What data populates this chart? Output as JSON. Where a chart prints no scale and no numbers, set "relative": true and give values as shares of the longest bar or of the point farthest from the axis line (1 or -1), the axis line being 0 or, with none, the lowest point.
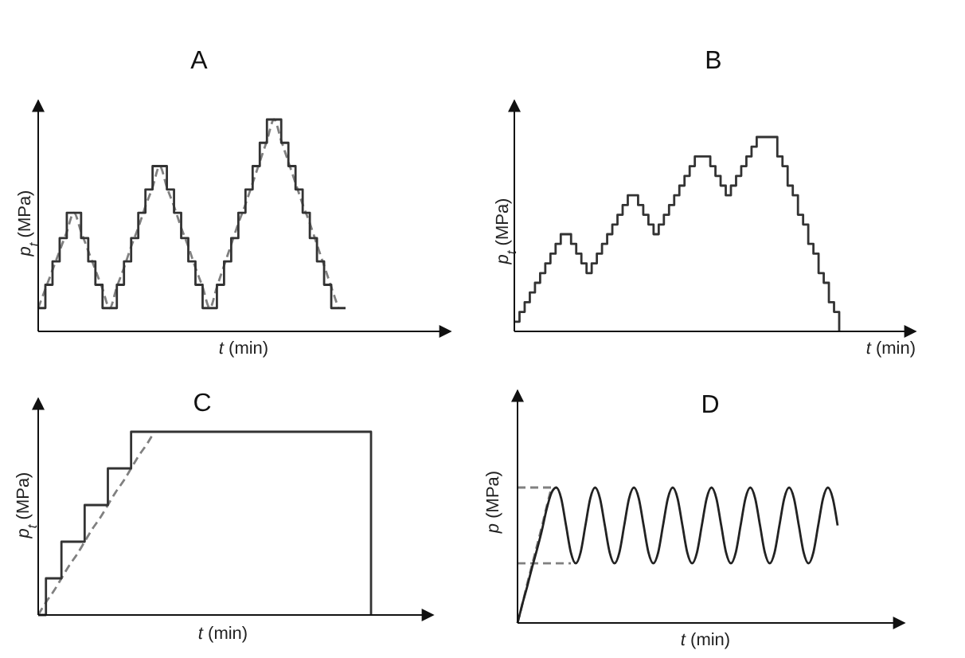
{
  "chart_data": [
    {
      "type": "step",
      "title": "A",
      "xlabel": "t (min)",
      "ylabel": "p$_{t}$ (MPa)",
      "relative": true,
      "categories": [
        null,
        null,
        null,
        null,
        null,
        null,
        null,
        null,
        null,
        null,
        null,
        null,
        null,
        null,
        null,
        null,
        null,
        null,
        null,
        null,
        null,
        null,
        null,
        null,
        null,
        null,
        null,
        null,
        null,
        null,
        null,
        null,
        null,
        null,
        null,
        null,
        null,
        null,
        null,
        null,
        null,
        null,
        null,
        null
      ],
      "series": [
        {
          "type": "line",
          "color": "#808080",
          "line_style": "dashed",
          "values": [
            0.11,
            0.2,
            0.29,
            0.38,
            0.47,
            0.56,
            0.47,
            0.38,
            0.29,
            0.2,
            0.11,
            0.21,
            0.3,
            0.4,
            0.49,
            0.59,
            0.68,
            0.78,
            0.68,
            0.59,
            0.49,
            0.4,
            0.3,
            0.21,
            0.11,
            0.21,
            0.31,
            0.41,
            0.51,
            0.6,
            0.7,
            0.8,
            0.9,
            1,
            0.9,
            0.8,
            0.7,
            0.6,
            0.51,
            0.41,
            0.31,
            0.21,
            0.11,
            null
          ]
        },
        {
          "color": "#333333",
          "line_style": "solid",
          "values": [
            0.11,
            0.22,
            0.33,
            0.44,
            0.56,
            0.56,
            0.44,
            0.33,
            0.22,
            0.11,
            0.11,
            0.22,
            0.33,
            0.44,
            0.56,
            0.67,
            0.78,
            0.78,
            0.67,
            0.56,
            0.44,
            0.33,
            0.22,
            0.11,
            0.11,
            0.22,
            0.33,
            0.44,
            0.56,
            0.67,
            0.78,
            0.89,
            1,
            1,
            0.89,
            0.78,
            0.67,
            0.56,
            0.44,
            0.33,
            0.22,
            0.11,
            0.11,
            0.11
          ]
        }
      ]
    },
    {
      "type": "step",
      "title": "B",
      "xlabel": "t (min)",
      "ylabel": "p$_{t}$ (MPa)",
      "relative": true,
      "categories": [
        null,
        null,
        null,
        null,
        null,
        null,
        null,
        null,
        null,
        null,
        null,
        null,
        null,
        null,
        null,
        null,
        null,
        null,
        null,
        null,
        null,
        null,
        null,
        null,
        null,
        null,
        null,
        null,
        null,
        null,
        null,
        null,
        null,
        null,
        null,
        null,
        null,
        null,
        null,
        null,
        null,
        null,
        null,
        null,
        null,
        null,
        null,
        null,
        null,
        null,
        null,
        null,
        null,
        null,
        null,
        null,
        null,
        null,
        null,
        null,
        null,
        null,
        null,
        null
      ],
      "series": [
        {
          "color": "#333333",
          "line_style": "solid",
          "values": [
            0.05,
            0.1,
            0.15,
            0.2,
            0.25,
            0.3,
            0.35,
            0.4,
            0.45,
            0.5,
            0.5,
            0.45,
            0.4,
            0.35,
            0.3,
            0.35,
            0.4,
            0.45,
            0.5,
            0.55,
            0.6,
            0.65,
            0.7,
            0.7,
            0.65,
            0.6,
            0.55,
            0.5,
            0.55,
            0.6,
            0.65,
            0.7,
            0.75,
            0.8,
            0.85,
            0.9,
            0.9,
            0.9,
            0.85,
            0.8,
            0.75,
            0.7,
            0.75,
            0.8,
            0.85,
            0.9,
            0.95,
            1,
            1,
            1,
            1,
            0.9,
            0.85,
            0.75,
            0.7,
            0.6,
            0.55,
            0.45,
            0.4,
            0.3,
            0.25,
            0.15,
            0.1,
            0
          ]
        }
      ]
    },
    {
      "type": "step",
      "title": "C",
      "xlabel": "t (min)",
      "ylabel": "p$_{t}$ (MPa)",
      "relative": true,
      "categories": [
        null,
        null,
        null,
        null,
        null,
        null,
        null,
        null,
        null,
        null,
        null,
        null,
        null,
        null,
        null,
        null,
        null,
        null,
        null,
        null,
        null,
        null,
        null,
        null,
        null,
        null,
        null,
        null,
        null,
        null,
        null,
        null,
        null,
        null,
        null,
        null,
        null,
        null,
        null,
        null,
        null,
        null,
        null,
        null
      ],
      "series": [
        {
          "type": "line",
          "color": "#808080",
          "line_style": "dashed",
          "values": [
            0,
            0.07,
            0.13,
            0.2,
            0.27,
            0.33,
            0.4,
            0.47,
            0.53,
            0.6,
            0.67,
            0.73,
            0.8,
            0.87,
            0.93,
            1,
            null,
            null,
            null,
            null,
            null,
            null,
            null,
            null,
            null,
            null,
            null,
            null,
            null,
            null,
            null,
            null,
            null,
            null,
            null,
            null,
            null,
            null,
            null,
            null,
            null,
            null,
            null,
            null
          ]
        },
        {
          "color": "#333333",
          "line_style": "solid",
          "values": [
            0,
            0.2,
            0.2,
            0.4,
            0.4,
            0.4,
            0.6,
            0.6,
            0.6,
            0.8,
            0.8,
            0.8,
            1,
            1,
            1,
            1,
            1,
            1,
            1,
            1,
            1,
            1,
            1,
            1,
            1,
            1,
            1,
            1,
            1,
            1,
            1,
            1,
            1,
            1,
            1,
            1,
            1,
            1,
            1,
            1,
            1,
            1,
            1,
            0
          ]
        }
      ]
    },
    {
      "type": "line",
      "title": "D",
      "xlabel": "t (min)",
      "ylabel": "p (MPa)",
      "relative": true,
      "categories": [
        null,
        null,
        null,
        null,
        null,
        null,
        null,
        null,
        null,
        null,
        null,
        null,
        null,
        null,
        null,
        null,
        null,
        null,
        null,
        null,
        null,
        null,
        null,
        null,
        null,
        null,
        null,
        null,
        null,
        null,
        null,
        null,
        null,
        null,
        null,
        null,
        null,
        null,
        null,
        null,
        null,
        null,
        null,
        null,
        null,
        null,
        null,
        null,
        null,
        null,
        null,
        null,
        null,
        null,
        null,
        null,
        null,
        null,
        null,
        null,
        null,
        null,
        null,
        null,
        null,
        null,
        null
      ],
      "series": [
        {
          "color": "#808080",
          "line_style": "dashed",
          "values": [
            1,
            1,
            1,
            1,
            1,
            1,
            1,
            1,
            1,
            null,
            null,
            null,
            null,
            null,
            null,
            null,
            null,
            null,
            null,
            null,
            null,
            null,
            null,
            null,
            null,
            null,
            null,
            null,
            null,
            null,
            null,
            null,
            null,
            null,
            null,
            null,
            null,
            null,
            null,
            null,
            null,
            null,
            null,
            null,
            null,
            null,
            null,
            null,
            null,
            null,
            null,
            null,
            null,
            null,
            null,
            null,
            null,
            null,
            null,
            null,
            null,
            null,
            null,
            null,
            null,
            null,
            null
          ]
        },
        {
          "color": "#808080",
          "line_style": "dashed",
          "values": [
            0.44,
            0.44,
            0.44,
            0.44,
            0.44,
            0.44,
            0.44,
            0.44,
            0.44,
            0.44,
            0.44,
            0.44,
            null,
            null,
            null,
            null,
            null,
            null,
            null,
            null,
            null,
            null,
            null,
            null,
            null,
            null,
            null,
            null,
            null,
            null,
            null,
            null,
            null,
            null,
            null,
            null,
            null,
            null,
            null,
            null,
            null,
            null,
            null,
            null,
            null,
            null,
            null,
            null,
            null,
            null,
            null,
            null,
            null,
            null,
            null,
            null,
            null,
            null,
            null,
            null,
            null,
            null,
            null,
            null,
            null,
            null,
            null
          ]
        },
        {
          "color": "#808080",
          "line_style": "dashed",
          "values": [
            0,
            0.14,
            0.29,
            0.43,
            0.57,
            0.71,
            0.86,
            1,
            null,
            null,
            null,
            null,
            null,
            null,
            null,
            null,
            null,
            null,
            null,
            null,
            null,
            null,
            null,
            null,
            null,
            null,
            null,
            null,
            null,
            null,
            null,
            null,
            null,
            null,
            null,
            null,
            null,
            null,
            null,
            null,
            null,
            null,
            null,
            null,
            null,
            null,
            null,
            null,
            null,
            null,
            null,
            null,
            null,
            null,
            null,
            null,
            null,
            null,
            null,
            null,
            null,
            null,
            null,
            null,
            null,
            null,
            null
          ]
        },
        {
          "color": "#222222",
          "line_style": "solid",
          "values": [
            0,
            0.14,
            0.27,
            0.41,
            0.54,
            0.68,
            0.84,
            0.96,
            1,
            0.92,
            0.72,
            0.52,
            0.44,
            0.52,
            0.72,
            0.92,
            1,
            0.92,
            0.72,
            0.52,
            0.44,
            0.52,
            0.72,
            0.92,
            1,
            0.92,
            0.72,
            0.52,
            0.44,
            0.52,
            0.72,
            0.92,
            1,
            0.92,
            0.72,
            0.52,
            0.44,
            0.52,
            0.72,
            0.92,
            1,
            0.92,
            0.72,
            0.52,
            0.44,
            0.52,
            0.72,
            0.92,
            1,
            0.92,
            0.72,
            0.52,
            0.44,
            0.52,
            0.72,
            0.92,
            1,
            0.92,
            0.72,
            0.52,
            0.44,
            0.52,
            0.72,
            0.92,
            1,
            0.92,
            0.72
          ]
        }
      ]
    }
  ]
}
